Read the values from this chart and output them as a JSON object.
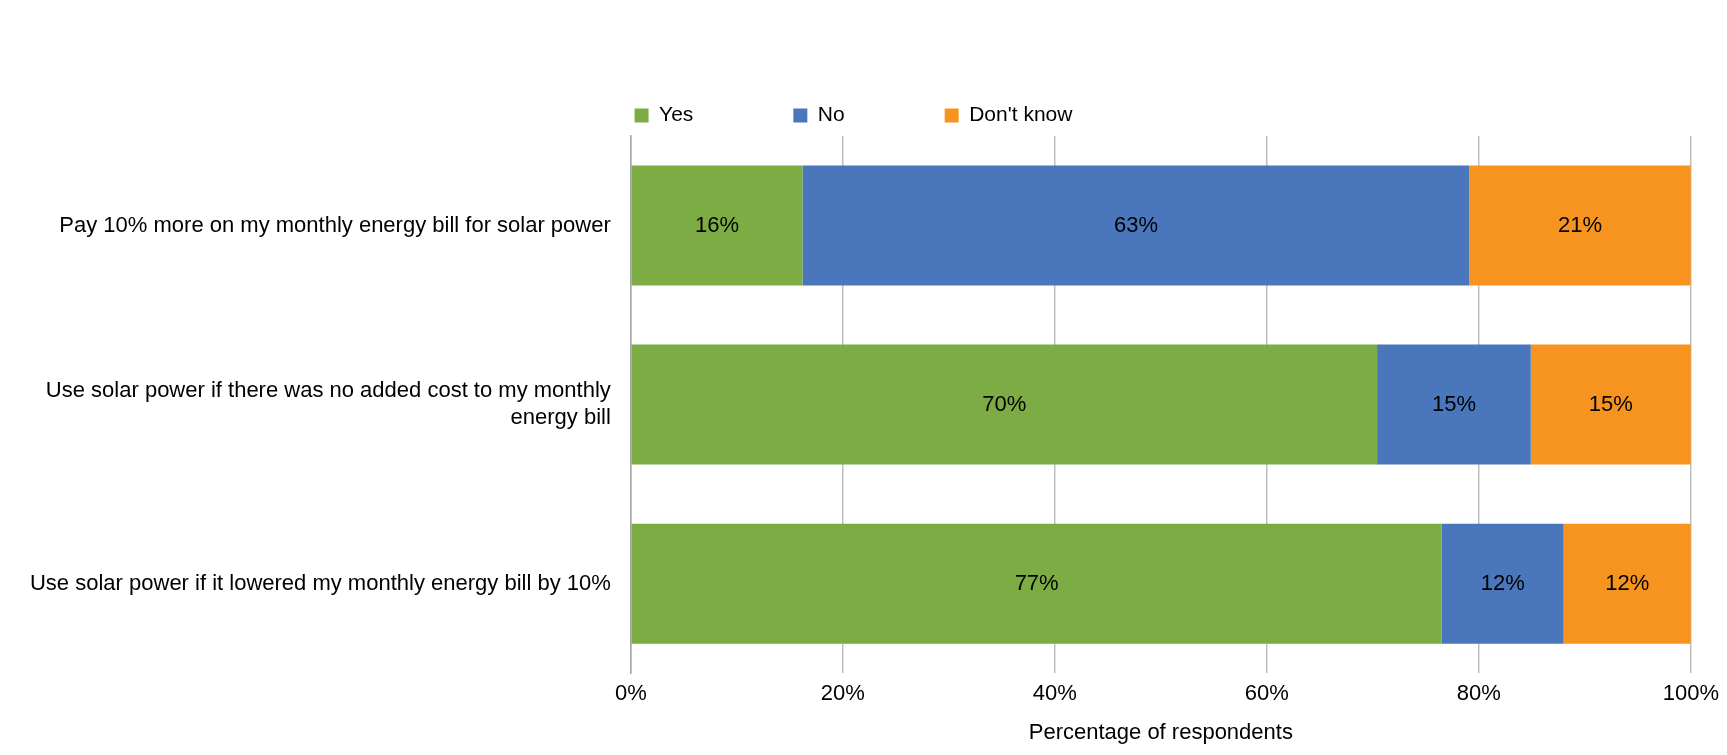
{
  "chart_data": {
    "type": "bar",
    "orientation": "horizontal",
    "stacked": true,
    "categories": [
      "Pay 10% more on my monthly energy bill for solar power",
      "Use solar power if there was no added cost to my monthly energy bill",
      "Use solar power if it lowered my monthly energy bill by 10%"
    ],
    "series": [
      {
        "name": "Yes",
        "color": "#7cac43",
        "values": [
          16.2,
          70.4,
          76.5
        ],
        "value_labels": [
          "16%",
          "70%",
          "77%"
        ]
      },
      {
        "name": "No",
        "color": "#4a77bc",
        "values": [
          62.9,
          14.5,
          11.5
        ],
        "value_labels": [
          "63%",
          "15%",
          "12%"
        ]
      },
      {
        "name": "Don't know",
        "color": "#f79420",
        "values": [
          20.9,
          15.1,
          12.0
        ],
        "value_labels": [
          "21%",
          "15%",
          "12%"
        ]
      }
    ],
    "xlim": [
      0,
      100
    ],
    "xticks": [
      {
        "value": 0,
        "label": "0%"
      },
      {
        "value": 20,
        "label": "20%"
      },
      {
        "value": 40,
        "label": "40%"
      },
      {
        "value": 60,
        "label": "60%"
      },
      {
        "value": 80,
        "label": "80%"
      },
      {
        "value": 100,
        "label": "100%"
      }
    ],
    "xlabel": "Percentage of respondents",
    "grid": "x",
    "legend": "top"
  }
}
